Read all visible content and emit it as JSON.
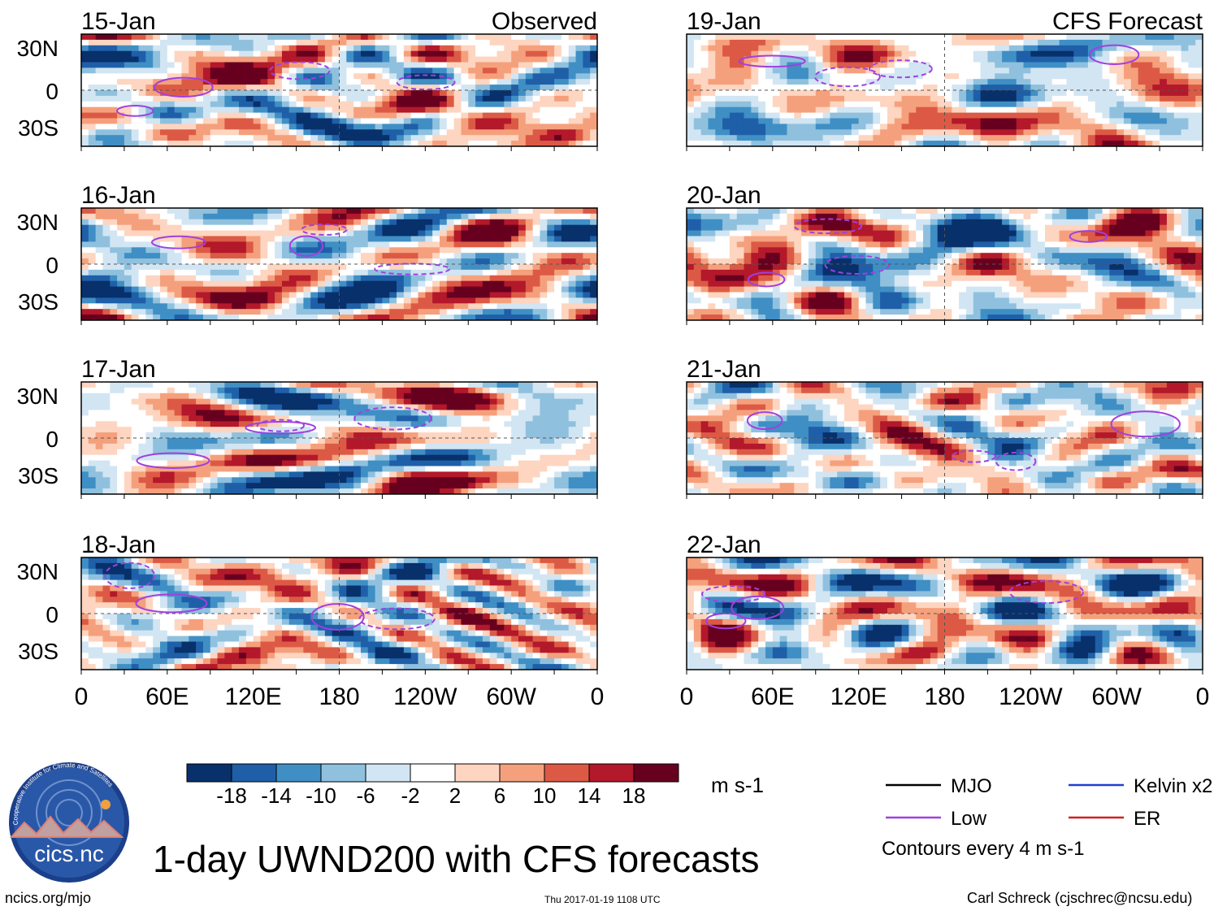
{
  "chart_data": {
    "type": "heatmap",
    "title": "1-day UWND200 with CFS forecasts",
    "variable": "UWND200",
    "units": "m s-1",
    "column_headers": [
      "Observed",
      "CFS Forecast"
    ],
    "x_ticks": [
      "0",
      "60E",
      "120E",
      "180",
      "120W",
      "60W",
      "0"
    ],
    "y_ticks": [
      "30N",
      "0",
      "30S"
    ],
    "lat_range": [
      -40,
      40
    ],
    "lon_range": [
      0,
      360
    ],
    "panels": [
      {
        "date": "15-Jan",
        "kind": "observed",
        "seed": 11
      },
      {
        "date": "16-Jan",
        "kind": "observed",
        "seed": 23
      },
      {
        "date": "17-Jan",
        "kind": "observed",
        "seed": 37
      },
      {
        "date": "18-Jan",
        "kind": "observed",
        "seed": 41
      },
      {
        "date": "19-Jan",
        "kind": "forecast",
        "seed": 53
      },
      {
        "date": "20-Jan",
        "kind": "forecast",
        "seed": 67
      },
      {
        "date": "21-Jan",
        "kind": "forecast",
        "seed": 71
      },
      {
        "date": "22-Jan",
        "kind": "forecast",
        "seed": 89
      }
    ],
    "colorbar": {
      "labels": [
        "-18",
        "-14",
        "-10",
        "-6",
        "-2",
        "2",
        "6",
        "10",
        "14",
        "18"
      ],
      "colors": [
        "#08306b",
        "#1f5fa8",
        "#3f8fc5",
        "#8fc1de",
        "#d2e5f3",
        "#ffffff",
        "#fdd5c0",
        "#f5a07c",
        "#dc5a45",
        "#b3182b",
        "#67001f"
      ]
    },
    "legend": {
      "items": [
        {
          "label": "MJO",
          "color": "#000000"
        },
        {
          "label": "Kelvin x2",
          "color": "#2040d0"
        },
        {
          "label": "Low",
          "color": "#a040e0"
        },
        {
          "label": "ER",
          "color": "#d02020"
        }
      ],
      "note": "Contours every 4 m s-1"
    }
  },
  "logo": {
    "text": "cics.nc",
    "ring_text": "Cooperative Institute for Climate and Satellites"
  },
  "footer": {
    "left": "ncics.org/mjo",
    "center": "Thu 2017-01-19 1108 UTC",
    "right": "Carl Schreck (cjschrec@ncsu.edu)"
  }
}
